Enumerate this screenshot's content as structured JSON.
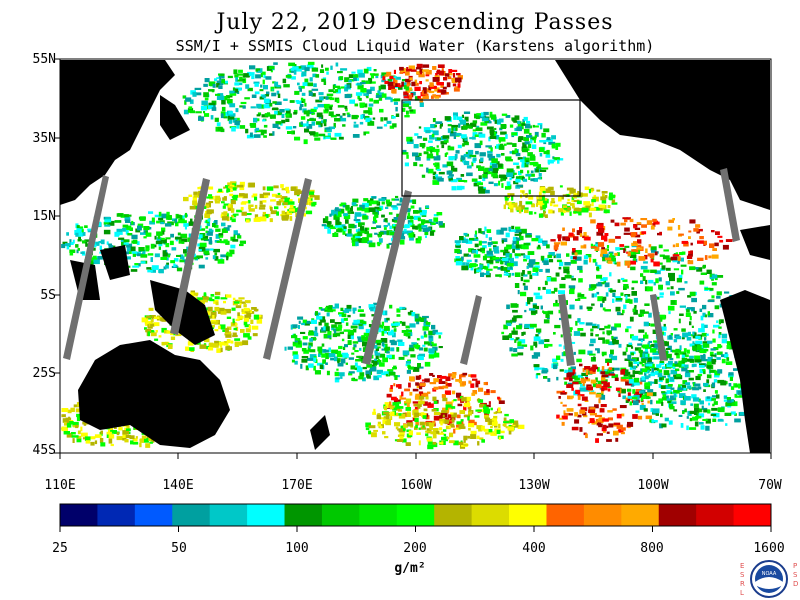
{
  "title": "July 22, 2019  Descending Passes",
  "subtitle": "SSM/I + SSMIS Cloud Liquid Water (Karstens algorithm)",
  "lat_labels": [
    "55N",
    "35N",
    "15N",
    "5S",
    "25S",
    "45S"
  ],
  "lon_labels": [
    "110E",
    "140E",
    "170E",
    "160W",
    "130W",
    "100W",
    "70W"
  ],
  "colorbar": {
    "labels": [
      "25",
      "50",
      "100",
      "200",
      "400",
      "800",
      "1600"
    ],
    "units": "g/m²",
    "colors": [
      "#00006a",
      "#0028b4",
      "#005aff",
      "#00a0a0",
      "#00c8c8",
      "#00ffff",
      "#009600",
      "#00c800",
      "#00e600",
      "#00ff00",
      "#b4b400",
      "#dcdc00",
      "#ffff00",
      "#ff6400",
      "#ff8c00",
      "#ffaa00",
      "#a00000",
      "#d20000",
      "#ff0000"
    ]
  },
  "logo": {
    "name": "NOAA",
    "left_text": "ESRL",
    "right_text": "PSD"
  },
  "colors": {
    "land": "#000000",
    "no_data": "#ffffff",
    "missing_swath": "#707070"
  }
}
